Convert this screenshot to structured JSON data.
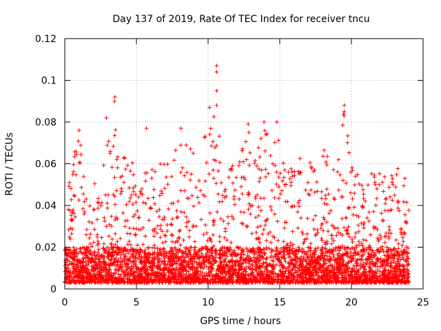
{
  "chart_data": {
    "type": "scatter",
    "title": "Day 137 of 2019, Rate Of TEC Index for receiver tncu",
    "xlabel": "GPS time / hours",
    "ylabel": "ROTI / TECUs",
    "xlim": [
      0,
      25
    ],
    "ylim": [
      0,
      0.12
    ],
    "x_ticks": [
      0,
      5,
      10,
      15,
      20,
      25
    ],
    "x_tick_labels": [
      "0",
      "5",
      "10",
      "15",
      "20",
      "25"
    ],
    "y_ticks": [
      0,
      0.02,
      0.04,
      0.06,
      0.08,
      0.1,
      0.12
    ],
    "y_tick_labels": [
      "0",
      "0.02",
      "0.04",
      "0.06",
      "0.08",
      "0.1",
      "0.12"
    ],
    "grid": true,
    "marker": "+",
    "color": "#ff0000",
    "data_span_hours": [
      0,
      24
    ],
    "baseline_range": [
      0.003,
      0.02
    ],
    "notable_points": [
      {
        "x": 10.6,
        "y": 0.107
      },
      {
        "x": 10.6,
        "y": 0.104
      },
      {
        "x": 10.6,
        "y": 0.095
      },
      {
        "x": 10.6,
        "y": 0.088
      },
      {
        "x": 3.5,
        "y": 0.092
      },
      {
        "x": 19.5,
        "y": 0.088
      },
      {
        "x": 19.5,
        "y": 0.085
      },
      {
        "x": 10.1,
        "y": 0.087
      },
      {
        "x": 2.9,
        "y": 0.082
      },
      {
        "x": 12.8,
        "y": 0.079
      },
      {
        "x": 14.8,
        "y": 0.08
      },
      {
        "x": 1.0,
        "y": 0.076
      },
      {
        "x": 5.7,
        "y": 0.077
      },
      {
        "x": 8.1,
        "y": 0.077
      },
      {
        "x": 13.9,
        "y": 0.08
      }
    ],
    "activity_envelope": [
      {
        "x": 0.0,
        "y": 0.03
      },
      {
        "x": 0.5,
        "y": 0.066
      },
      {
        "x": 1.0,
        "y": 0.076
      },
      {
        "x": 1.5,
        "y": 0.045
      },
      {
        "x": 2.0,
        "y": 0.05
      },
      {
        "x": 2.5,
        "y": 0.062
      },
      {
        "x": 3.0,
        "y": 0.082
      },
      {
        "x": 3.5,
        "y": 0.092
      },
      {
        "x": 4.0,
        "y": 0.064
      },
      {
        "x": 4.5,
        "y": 0.068
      },
      {
        "x": 5.0,
        "y": 0.052
      },
      {
        "x": 5.5,
        "y": 0.06
      },
      {
        "x": 6.0,
        "y": 0.076
      },
      {
        "x": 6.5,
        "y": 0.06
      },
      {
        "x": 7.0,
        "y": 0.066
      },
      {
        "x": 7.5,
        "y": 0.06
      },
      {
        "x": 8.0,
        "y": 0.077
      },
      {
        "x": 8.5,
        "y": 0.07
      },
      {
        "x": 9.0,
        "y": 0.067
      },
      {
        "x": 9.5,
        "y": 0.06
      },
      {
        "x": 10.0,
        "y": 0.087
      },
      {
        "x": 10.5,
        "y": 0.107
      },
      {
        "x": 11.0,
        "y": 0.05
      },
      {
        "x": 11.5,
        "y": 0.058
      },
      {
        "x": 12.0,
        "y": 0.067
      },
      {
        "x": 12.5,
        "y": 0.072
      },
      {
        "x": 13.0,
        "y": 0.079
      },
      {
        "x": 13.5,
        "y": 0.068
      },
      {
        "x": 14.0,
        "y": 0.08
      },
      {
        "x": 14.5,
        "y": 0.07
      },
      {
        "x": 15.0,
        "y": 0.076
      },
      {
        "x": 15.5,
        "y": 0.062
      },
      {
        "x": 16.0,
        "y": 0.066
      },
      {
        "x": 16.5,
        "y": 0.068
      },
      {
        "x": 17.0,
        "y": 0.063
      },
      {
        "x": 17.5,
        "y": 0.058
      },
      {
        "x": 18.0,
        "y": 0.07
      },
      {
        "x": 18.5,
        "y": 0.067
      },
      {
        "x": 19.0,
        "y": 0.062
      },
      {
        "x": 19.5,
        "y": 0.088
      },
      {
        "x": 20.0,
        "y": 0.06
      },
      {
        "x": 20.5,
        "y": 0.054
      },
      {
        "x": 21.0,
        "y": 0.05
      },
      {
        "x": 21.5,
        "y": 0.057
      },
      {
        "x": 22.0,
        "y": 0.058
      },
      {
        "x": 22.5,
        "y": 0.052
      },
      {
        "x": 23.0,
        "y": 0.058
      },
      {
        "x": 23.5,
        "y": 0.061
      },
      {
        "x": 24.0,
        "y": 0.048
      }
    ]
  }
}
